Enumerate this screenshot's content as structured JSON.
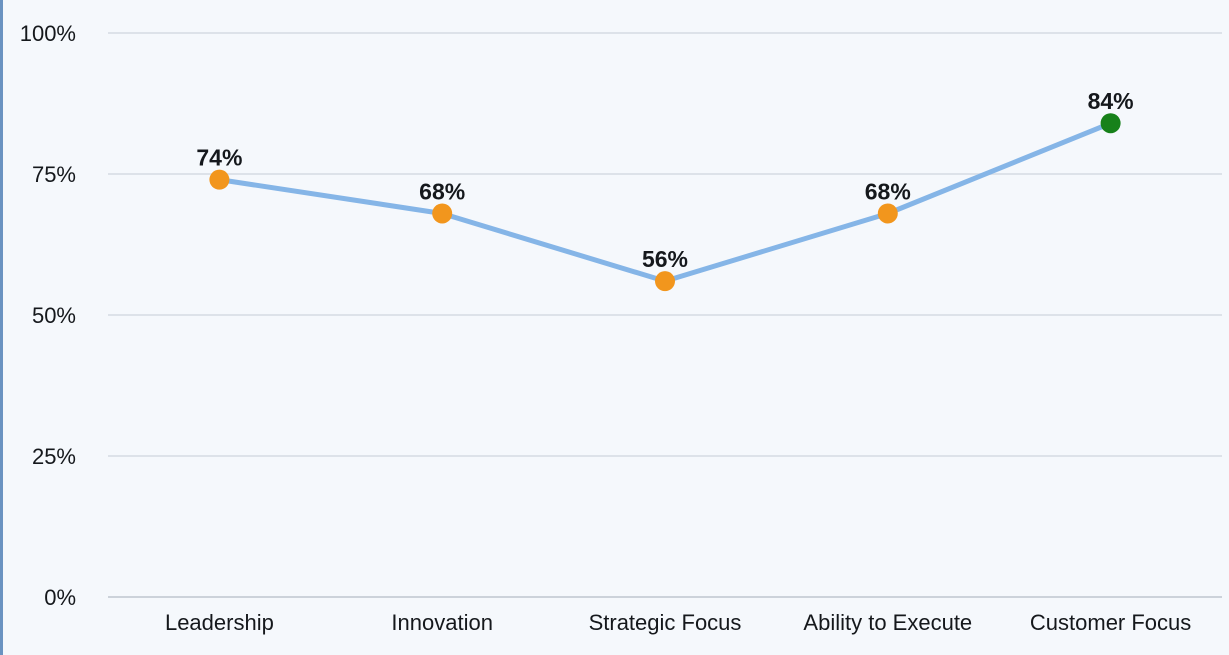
{
  "chart_data": {
    "type": "line",
    "title": "",
    "xlabel": "",
    "ylabel": "",
    "categories": [
      "Leadership",
      "Innovation",
      "Strategic Focus",
      "Ability to Execute",
      "Customer Focus"
    ],
    "values": [
      74,
      68,
      56,
      68,
      84
    ],
    "data_labels": [
      "74%",
      "68%",
      "56%",
      "68%",
      "84%"
    ],
    "point_colors": [
      "#f2961d",
      "#f2961d",
      "#f2961d",
      "#f2961d",
      "#17811a"
    ],
    "line_color": "#85b5e7",
    "ylim": [
      0,
      100
    ],
    "y_ticks": [
      0,
      25,
      50,
      75,
      100
    ],
    "y_tick_labels": [
      "0%",
      "25%",
      "50%",
      "75%",
      "100%"
    ],
    "grid": true,
    "legend": "none",
    "background_color": "#f5f8fc",
    "grid_color": "#dde2e9",
    "axis_line_color": "#ccd2da",
    "label_color": "#15181c",
    "accent_bar_color": "#6a93c1"
  }
}
